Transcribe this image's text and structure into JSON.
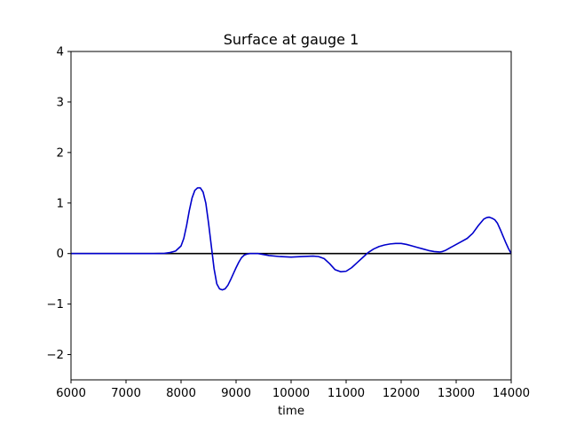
{
  "chart_data": {
    "type": "line",
    "title": "Surface at gauge 1",
    "xlabel": "time",
    "ylabel": "",
    "xlim": [
      6000,
      14000
    ],
    "ylim": [
      -2.5,
      4
    ],
    "xticks": [
      6000,
      7000,
      8000,
      9000,
      10000,
      11000,
      12000,
      13000,
      14000
    ],
    "yticks": [
      -2,
      -1,
      0,
      1,
      2,
      3,
      4
    ],
    "grid": false,
    "series": [
      {
        "color": "#0000cc",
        "x": [
          6000,
          7000,
          7500,
          7700,
          7800,
          7900,
          8000,
          8050,
          8100,
          8150,
          8200,
          8250,
          8300,
          8350,
          8400,
          8450,
          8500,
          8550,
          8600,
          8650,
          8700,
          8750,
          8800,
          8850,
          8900,
          8950,
          9000,
          9050,
          9100,
          9150,
          9200,
          9250,
          9300,
          9350,
          9400,
          9500,
          9600,
          9800,
          10000,
          10200,
          10400,
          10500,
          10600,
          10700,
          10800,
          10900,
          11000,
          11100,
          11200,
          11300,
          11400,
          11500,
          11600,
          11700,
          11800,
          11900,
          12000,
          12100,
          12200,
          12300,
          12400,
          12500,
          12600,
          12700,
          12750,
          12800,
          12900,
          13000,
          13100,
          13200,
          13300,
          13400,
          13500,
          13550,
          13600,
          13650,
          13700,
          13750,
          13800,
          13850,
          13900,
          13950,
          14000
        ],
        "y": [
          0,
          0,
          0,
          0.005,
          0.02,
          0.05,
          0.15,
          0.3,
          0.55,
          0.85,
          1.1,
          1.25,
          1.3,
          1.3,
          1.22,
          1.0,
          0.6,
          0.15,
          -0.3,
          -0.6,
          -0.7,
          -0.72,
          -0.7,
          -0.63,
          -0.52,
          -0.4,
          -0.28,
          -0.17,
          -0.08,
          -0.03,
          -0.01,
          0,
          0,
          0,
          0,
          -0.02,
          -0.04,
          -0.06,
          -0.07,
          -0.06,
          -0.05,
          -0.06,
          -0.1,
          -0.2,
          -0.32,
          -0.36,
          -0.35,
          -0.28,
          -0.18,
          -0.08,
          0.02,
          0.09,
          0.14,
          0.17,
          0.19,
          0.2,
          0.2,
          0.18,
          0.15,
          0.12,
          0.09,
          0.06,
          0.04,
          0.03,
          0.04,
          0.06,
          0.12,
          0.18,
          0.24,
          0.3,
          0.4,
          0.55,
          0.68,
          0.71,
          0.72,
          0.7,
          0.67,
          0.6,
          0.48,
          0.35,
          0.22,
          0.1,
          0
        ]
      }
    ],
    "reference_line": {
      "y": 0,
      "color": "#000000"
    }
  }
}
